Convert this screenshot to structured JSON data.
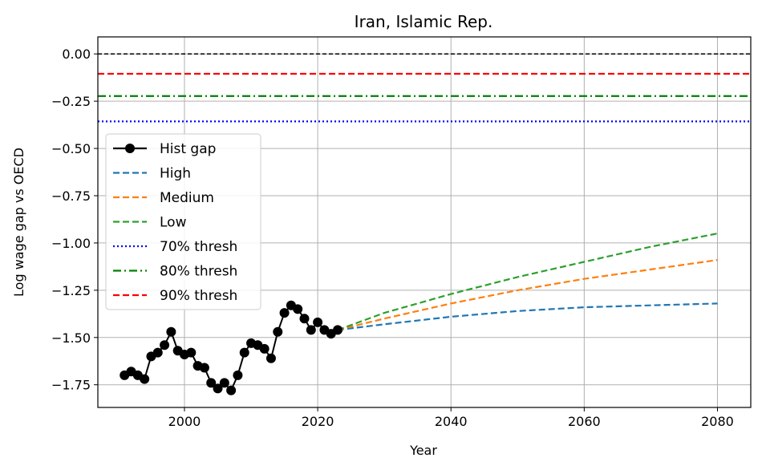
{
  "chart_data": {
    "type": "line",
    "title": "Iran, Islamic Rep.",
    "xlabel": "Year",
    "ylabel": "Log wage gap vs OECD",
    "xlim": [
      1987,
      2085
    ],
    "ylim": [
      -1.87,
      0.09
    ],
    "xticks": [
      2000,
      2020,
      2040,
      2060,
      2080
    ],
    "yticks": [
      0.0,
      -0.25,
      -0.5,
      -0.75,
      -1.0,
      -1.25,
      -1.5,
      -1.75
    ],
    "ytick_labels": [
      "0.00",
      "−0.25",
      "−0.50",
      "−0.75",
      "−1.00",
      "−1.25",
      "−1.50",
      "−1.75"
    ],
    "grid": true,
    "legend_position": "center-left",
    "reference_line": {
      "y": 0.0,
      "color": "#000000",
      "style": "dashed"
    },
    "hist": {
      "name": "Hist gap",
      "color": "#000000",
      "x": [
        1991,
        1992,
        1993,
        1994,
        1995,
        1996,
        1997,
        1998,
        1999,
        2000,
        2001,
        2002,
        2003,
        2004,
        2005,
        2006,
        2007,
        2008,
        2009,
        2010,
        2011,
        2012,
        2013,
        2014,
        2015,
        2016,
        2017,
        2018,
        2019,
        2020,
        2021,
        2022,
        2023
      ],
      "y": [
        -1.7,
        -1.68,
        -1.7,
        -1.72,
        -1.6,
        -1.58,
        -1.54,
        -1.47,
        -1.57,
        -1.59,
        -1.58,
        -1.65,
        -1.66,
        -1.74,
        -1.77,
        -1.74,
        -1.78,
        -1.7,
        -1.58,
        -1.53,
        -1.54,
        -1.56,
        -1.61,
        -1.47,
        -1.37,
        -1.33,
        -1.35,
        -1.4,
        -1.46,
        -1.42,
        -1.46,
        -1.48,
        -1.46
      ]
    },
    "series": [
      {
        "name": "High",
        "color": "#1f77b4",
        "style": "dashed",
        "x": [
          2023,
          2030,
          2040,
          2050,
          2060,
          2070,
          2080
        ],
        "y": [
          -1.46,
          -1.43,
          -1.39,
          -1.36,
          -1.34,
          -1.33,
          -1.32
        ]
      },
      {
        "name": "Medium",
        "color": "#ff7f0e",
        "style": "dashed",
        "x": [
          2023,
          2030,
          2040,
          2050,
          2060,
          2070,
          2080
        ],
        "y": [
          -1.46,
          -1.4,
          -1.32,
          -1.25,
          -1.19,
          -1.14,
          -1.09
        ]
      },
      {
        "name": "Low",
        "color": "#2ca02c",
        "style": "dashed",
        "x": [
          2023,
          2030,
          2040,
          2050,
          2060,
          2070,
          2080
        ],
        "y": [
          -1.46,
          -1.37,
          -1.27,
          -1.18,
          -1.1,
          -1.02,
          -0.95
        ]
      }
    ],
    "thresholds": [
      {
        "name": "70% thresh",
        "y": -0.357,
        "color": "#0000ff",
        "style": "dotted"
      },
      {
        "name": "80% thresh",
        "y": -0.223,
        "color": "#008000",
        "style": "dashdot"
      },
      {
        "name": "90% thresh",
        "y": -0.105,
        "color": "#ff0000",
        "style": "dashed"
      }
    ]
  }
}
